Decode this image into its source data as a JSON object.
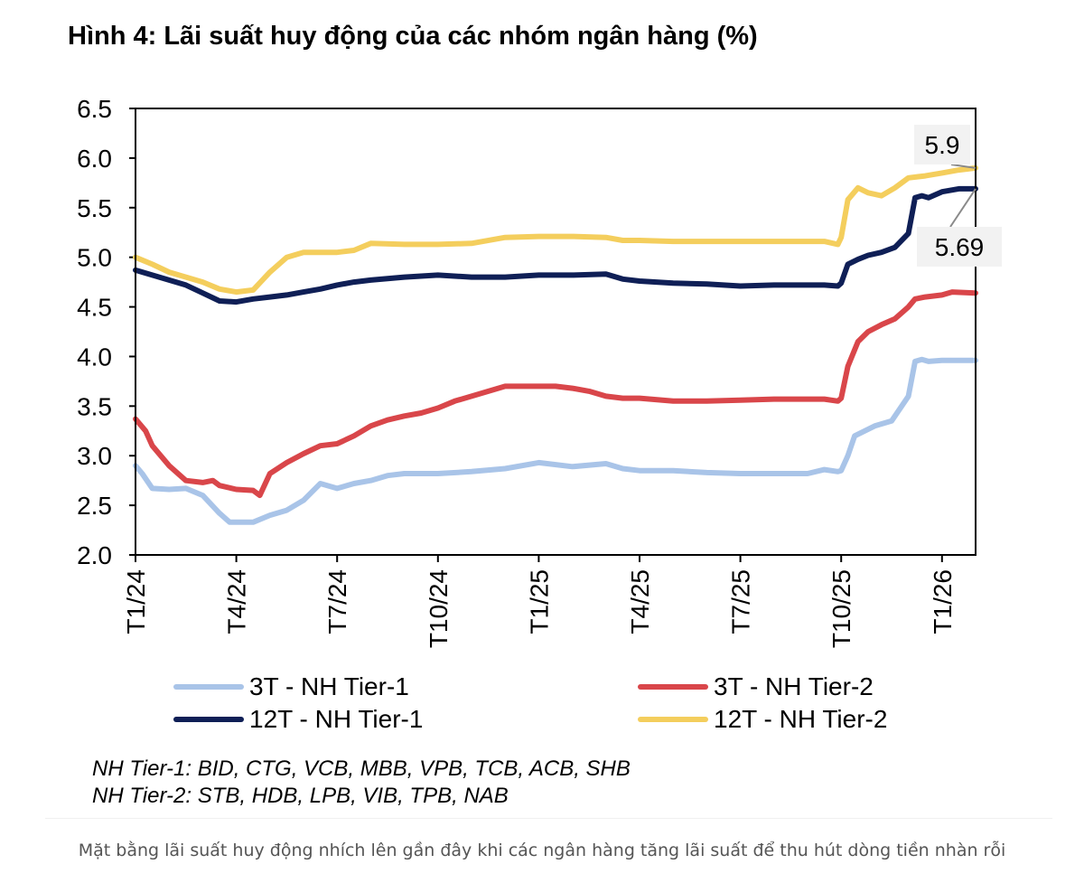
{
  "title": "Hình 4: Lãi suất huy động của các nhóm ngân hàng (%)",
  "caption": "Mặt bằng lãi suất huy động nhích lên gần đây khi các ngân hàng tăng lãi suất để thu hút dòng tiền nhàn rỗi",
  "notes": [
    "NH Tier-1: BID, CTG, VCB, MBB, VPB, TCB, ACB, SHB",
    "NH Tier-2: STB, HDB, LPB, VIB, TPB, NAB"
  ],
  "chart_data": {
    "type": "line",
    "title": "Hình 4: Lãi suất huy động của các nhóm ngân hàng (%)",
    "xlabel": "",
    "ylabel": "",
    "x_range": [
      0,
      25
    ],
    "ylim": [
      2.0,
      6.5
    ],
    "y_ticks": [
      "6.5",
      "6.0",
      "5.5",
      "5.0",
      "4.5",
      "4.0",
      "3.5",
      "3.0",
      "2.5",
      "2.0"
    ],
    "x_ticks": [
      {
        "label": "T1/24",
        "x": 0
      },
      {
        "label": "T4/24",
        "x": 3
      },
      {
        "label": "T7/24",
        "x": 6
      },
      {
        "label": "T10/24",
        "x": 9
      },
      {
        "label": "T1/25",
        "x": 12
      },
      {
        "label": "T4/25",
        "x": 15
      },
      {
        "label": "T7/25",
        "x": 18
      },
      {
        "label": "T10/25",
        "x": 21
      },
      {
        "label": "T1/26",
        "x": 24
      }
    ],
    "grid": false,
    "legend_position": "bottom",
    "series": [
      {
        "name": "3T - NH Tier-1",
        "color": "#a9c4e8",
        "points": [
          [
            0,
            2.9
          ],
          [
            0.2,
            2.82
          ],
          [
            0.5,
            2.67
          ],
          [
            1,
            2.66
          ],
          [
            1.5,
            2.67
          ],
          [
            2,
            2.6
          ],
          [
            2.5,
            2.42
          ],
          [
            2.8,
            2.33
          ],
          [
            3.5,
            2.33
          ],
          [
            4,
            2.4
          ],
          [
            4.5,
            2.45
          ],
          [
            5,
            2.55
          ],
          [
            5.5,
            2.72
          ],
          [
            6,
            2.67
          ],
          [
            6.5,
            2.72
          ],
          [
            7,
            2.75
          ],
          [
            7.5,
            2.8
          ],
          [
            8,
            2.82
          ],
          [
            9,
            2.82
          ],
          [
            10,
            2.84
          ],
          [
            11,
            2.87
          ],
          [
            12,
            2.93
          ],
          [
            13,
            2.89
          ],
          [
            14,
            2.92
          ],
          [
            14.5,
            2.87
          ],
          [
            15,
            2.85
          ],
          [
            16,
            2.85
          ],
          [
            17,
            2.83
          ],
          [
            18,
            2.82
          ],
          [
            19,
            2.82
          ],
          [
            20,
            2.82
          ],
          [
            20.5,
            2.86
          ],
          [
            20.9,
            2.84
          ],
          [
            21,
            2.85
          ],
          [
            21.2,
            3.0
          ],
          [
            21.4,
            3.2
          ],
          [
            22,
            3.3
          ],
          [
            22.5,
            3.35
          ],
          [
            23,
            3.6
          ],
          [
            23.2,
            3.95
          ],
          [
            23.4,
            3.97
          ],
          [
            23.6,
            3.95
          ],
          [
            24,
            3.96
          ],
          [
            24.4,
            3.96
          ],
          [
            25,
            3.96
          ]
        ]
      },
      {
        "name": "3T - NH Tier-2",
        "color": "#d9464a",
        "points": [
          [
            0,
            3.37
          ],
          [
            0.3,
            3.25
          ],
          [
            0.5,
            3.1
          ],
          [
            1,
            2.9
          ],
          [
            1.5,
            2.75
          ],
          [
            2,
            2.73
          ],
          [
            2.3,
            2.75
          ],
          [
            2.5,
            2.7
          ],
          [
            3,
            2.66
          ],
          [
            3.5,
            2.65
          ],
          [
            3.7,
            2.6
          ],
          [
            4,
            2.82
          ],
          [
            4.5,
            2.93
          ],
          [
            5,
            3.02
          ],
          [
            5.5,
            3.1
          ],
          [
            6,
            3.12
          ],
          [
            6.5,
            3.2
          ],
          [
            7,
            3.3
          ],
          [
            7.5,
            3.36
          ],
          [
            8,
            3.4
          ],
          [
            8.5,
            3.43
          ],
          [
            9,
            3.48
          ],
          [
            9.5,
            3.55
          ],
          [
            10,
            3.6
          ],
          [
            10.5,
            3.65
          ],
          [
            11,
            3.7
          ],
          [
            12,
            3.7
          ],
          [
            12.5,
            3.7
          ],
          [
            13,
            3.68
          ],
          [
            13.5,
            3.65
          ],
          [
            14,
            3.6
          ],
          [
            14.5,
            3.58
          ],
          [
            15,
            3.58
          ],
          [
            16,
            3.55
          ],
          [
            17,
            3.55
          ],
          [
            18,
            3.56
          ],
          [
            19,
            3.57
          ],
          [
            20,
            3.57
          ],
          [
            20.5,
            3.57
          ],
          [
            20.9,
            3.55
          ],
          [
            21,
            3.58
          ],
          [
            21.2,
            3.9
          ],
          [
            21.5,
            4.15
          ],
          [
            21.8,
            4.25
          ],
          [
            22.2,
            4.32
          ],
          [
            22.6,
            4.38
          ],
          [
            23,
            4.5
          ],
          [
            23.2,
            4.58
          ],
          [
            23.5,
            4.6
          ],
          [
            24,
            4.62
          ],
          [
            24.3,
            4.65
          ],
          [
            25,
            4.64
          ]
        ]
      },
      {
        "name": "12T - NH Tier-1",
        "color": "#0f1f56",
        "points": [
          [
            0,
            4.87
          ],
          [
            0.5,
            4.82
          ],
          [
            1,
            4.77
          ],
          [
            1.5,
            4.72
          ],
          [
            2,
            4.64
          ],
          [
            2.5,
            4.56
          ],
          [
            3,
            4.55
          ],
          [
            3.5,
            4.58
          ],
          [
            4,
            4.6
          ],
          [
            4.5,
            4.62
          ],
          [
            5,
            4.65
          ],
          [
            5.5,
            4.68
          ],
          [
            6,
            4.72
          ],
          [
            6.5,
            4.75
          ],
          [
            7,
            4.77
          ],
          [
            8,
            4.8
          ],
          [
            9,
            4.82
          ],
          [
            10,
            4.8
          ],
          [
            11,
            4.8
          ],
          [
            12,
            4.82
          ],
          [
            13,
            4.82
          ],
          [
            14,
            4.83
          ],
          [
            14.5,
            4.78
          ],
          [
            15,
            4.76
          ],
          [
            16,
            4.74
          ],
          [
            17,
            4.73
          ],
          [
            18,
            4.71
          ],
          [
            19,
            4.72
          ],
          [
            20,
            4.72
          ],
          [
            20.5,
            4.72
          ],
          [
            20.9,
            4.71
          ],
          [
            21,
            4.74
          ],
          [
            21.2,
            4.93
          ],
          [
            21.5,
            4.98
          ],
          [
            21.8,
            5.02
          ],
          [
            22.2,
            5.05
          ],
          [
            22.6,
            5.1
          ],
          [
            23,
            5.24
          ],
          [
            23.2,
            5.6
          ],
          [
            23.4,
            5.62
          ],
          [
            23.6,
            5.6
          ],
          [
            24,
            5.66
          ],
          [
            24.5,
            5.69
          ],
          [
            25,
            5.69
          ]
        ]
      },
      {
        "name": "12T - NH Tier-2",
        "color": "#f4ce5d",
        "points": [
          [
            0,
            5.0
          ],
          [
            0.5,
            4.93
          ],
          [
            1,
            4.85
          ],
          [
            1.5,
            4.8
          ],
          [
            2,
            4.75
          ],
          [
            2.5,
            4.68
          ],
          [
            3,
            4.65
          ],
          [
            3.5,
            4.67
          ],
          [
            4,
            4.85
          ],
          [
            4.5,
            5.0
          ],
          [
            5,
            5.05
          ],
          [
            5.5,
            5.05
          ],
          [
            6,
            5.05
          ],
          [
            6.5,
            5.07
          ],
          [
            7,
            5.14
          ],
          [
            8,
            5.13
          ],
          [
            9,
            5.13
          ],
          [
            10,
            5.14
          ],
          [
            11,
            5.2
          ],
          [
            12,
            5.21
          ],
          [
            13,
            5.21
          ],
          [
            14,
            5.2
          ],
          [
            14.5,
            5.17
          ],
          [
            15,
            5.17
          ],
          [
            16,
            5.16
          ],
          [
            17,
            5.16
          ],
          [
            18,
            5.16
          ],
          [
            19,
            5.16
          ],
          [
            20,
            5.16
          ],
          [
            20.5,
            5.16
          ],
          [
            20.9,
            5.13
          ],
          [
            21,
            5.2
          ],
          [
            21.2,
            5.58
          ],
          [
            21.5,
            5.7
          ],
          [
            21.8,
            5.65
          ],
          [
            22.2,
            5.62
          ],
          [
            22.6,
            5.7
          ],
          [
            23,
            5.8
          ],
          [
            23.5,
            5.82
          ],
          [
            24,
            5.85
          ],
          [
            24.5,
            5.88
          ],
          [
            25,
            5.9
          ]
        ]
      }
    ],
    "annotations": [
      {
        "text": "5.9",
        "series": "12T - NH Tier-2",
        "x": 25,
        "y": 5.9
      },
      {
        "text": "5.69",
        "series": "12T - NH Tier-1",
        "x": 25,
        "y": 5.69
      }
    ]
  }
}
